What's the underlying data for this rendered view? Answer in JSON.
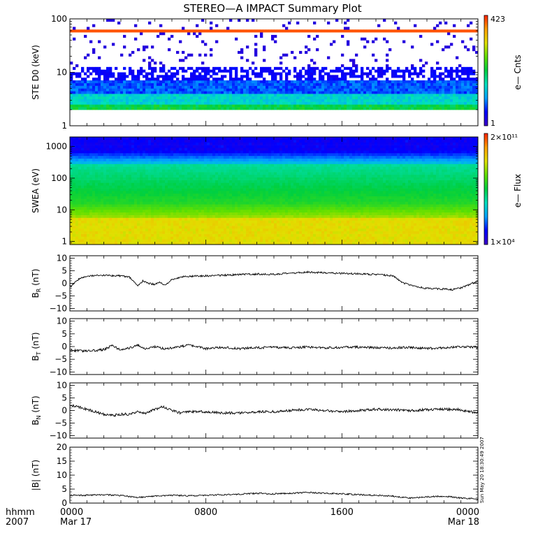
{
  "title": "STEREO—A IMPACT Summary Plot",
  "time_axis": {
    "row1_label": "hhmm",
    "row2_label": "2007",
    "ticks": [
      {
        "hours": 0,
        "time": "0000",
        "date": "Mar 17"
      },
      {
        "hours": 8,
        "time": "0800",
        "date": ""
      },
      {
        "hours": 16,
        "time": "1600",
        "date": ""
      },
      {
        "hours": 24,
        "time": "0000",
        "date": "Mar 18"
      }
    ]
  },
  "timestamp": "Sun May 20 18:30:49 2007",
  "colors": {
    "spectrogram_scale": [
      "#3b00c8",
      "#0000ff",
      "#00a0ff",
      "#00e0c0",
      "#00d040",
      "#60e000",
      "#e0e000",
      "#ffa000",
      "#ff2000"
    ],
    "line": "#000000",
    "axis": "#000000"
  },
  "chart_data": [
    {
      "type": "heatmap",
      "panel": "ste",
      "ylabel": "STE D0 (keV)",
      "yscale": "log",
      "ylim": [
        1,
        100
      ],
      "yticks": [
        {
          "v": 1,
          "t": "1"
        },
        {
          "v": 10,
          "t": "10"
        },
        {
          "v": 100,
          "t": "100"
        }
      ],
      "xlim": [
        0,
        24
      ],
      "colorbar": {
        "label": "e— Cnts",
        "max_label": "423",
        "min_label": "1",
        "range": [
          1,
          423
        ]
      }
    },
    {
      "type": "heatmap",
      "panel": "swea",
      "ylabel": "SWEA (eV)",
      "yscale": "log",
      "ylim": [
        0.8,
        2000
      ],
      "yticks": [
        {
          "v": 1,
          "t": "1"
        },
        {
          "v": 10,
          "t": "10"
        },
        {
          "v": 100,
          "t": "100"
        },
        {
          "v": 1000,
          "t": "1000"
        }
      ],
      "xlim": [
        0,
        24
      ],
      "colorbar": {
        "label": "e— Flux",
        "max_label": "2×10¹¹",
        "min_label": "1×10⁴",
        "range": [
          10000,
          200000000000
        ]
      }
    },
    {
      "type": "line",
      "panel": "br",
      "ylabel_main": "B",
      "ylabel_sub": "R",
      "ylabel_tail": " (nT)",
      "ylim": [
        -11,
        11
      ],
      "yticks": [
        {
          "v": 10,
          "t": "10"
        },
        {
          "v": 5,
          "t": "5"
        },
        {
          "v": 0,
          "t": "0"
        },
        {
          "v": -5,
          "t": "−5"
        },
        {
          "v": -10,
          "t": "−10"
        }
      ],
      "x": [
        0,
        0.3,
        0.6,
        1.0,
        2.0,
        3.0,
        3.5,
        3.8,
        4.0,
        4.3,
        4.6,
        5.0,
        5.3,
        5.6,
        6.0,
        6.5,
        7.0,
        8.0,
        9.0,
        10.0,
        11.0,
        12.0,
        13.0,
        14.0,
        15.0,
        16.0,
        17.0,
        18.0,
        19.0,
        19.5,
        20.0,
        20.5,
        21.0,
        22.0,
        22.5,
        23.0,
        23.5,
        24.0
      ],
      "y": [
        -1.5,
        0.5,
        2.0,
        2.8,
        3.2,
        3.0,
        2.5,
        0.5,
        -1.0,
        1.0,
        0.0,
        -0.5,
        0.5,
        -1.0,
        1.5,
        2.5,
        2.8,
        3.0,
        3.2,
        3.5,
        3.7,
        3.6,
        4.0,
        4.5,
        4.2,
        4.0,
        3.8,
        3.5,
        3.0,
        0.5,
        -0.8,
        -1.5,
        -2.0,
        -2.3,
        -2.5,
        -1.8,
        -0.5,
        1.0
      ],
      "noise": 0.35
    },
    {
      "type": "line",
      "panel": "bt",
      "ylabel_main": "B",
      "ylabel_sub": "T",
      "ylabel_tail": " (nT)",
      "ylim": [
        -11,
        11
      ],
      "yticks": [
        {
          "v": 10,
          "t": "10"
        },
        {
          "v": 5,
          "t": "5"
        },
        {
          "v": 0,
          "t": "0"
        },
        {
          "v": -5,
          "t": "−5"
        },
        {
          "v": -10,
          "t": "−10"
        }
      ],
      "x": [
        0,
        1,
        2,
        2.5,
        3,
        3.5,
        4,
        4.5,
        5,
        5.5,
        6,
        7,
        8,
        9,
        10,
        11,
        12,
        13,
        14,
        15,
        16,
        17,
        18,
        19,
        20,
        21,
        22,
        23,
        24
      ],
      "y": [
        -1.5,
        -1.8,
        -1.2,
        0.5,
        -1.5,
        -0.5,
        0.5,
        -1.0,
        0.0,
        -0.8,
        -0.5,
        0.5,
        -0.8,
        -0.3,
        -0.8,
        -0.5,
        -0.3,
        -0.5,
        -0.2,
        -0.5,
        -0.3,
        -0.2,
        -0.5,
        -0.5,
        -0.3,
        -0.8,
        -0.5,
        0.0,
        -0.3
      ],
      "noise": 0.45
    },
    {
      "type": "line",
      "panel": "bn",
      "ylabel_main": "B",
      "ylabel_sub": "N",
      "ylabel_tail": " (nT)",
      "ylim": [
        -11,
        11
      ],
      "yticks": [
        {
          "v": 10,
          "t": "10"
        },
        {
          "v": 5,
          "t": "5"
        },
        {
          "v": 0,
          "t": "0"
        },
        {
          "v": -5,
          "t": "−5"
        },
        {
          "v": -10,
          "t": "−10"
        }
      ],
      "x": [
        0,
        0.5,
        1,
        1.5,
        2,
        2.5,
        3,
        3.5,
        4,
        4.5,
        5,
        5.5,
        6,
        6.5,
        7,
        8,
        9,
        10,
        11,
        12,
        13,
        14,
        15,
        16,
        17,
        18,
        19,
        20,
        21,
        22,
        23,
        23.5,
        24
      ],
      "y": [
        2.0,
        1.5,
        0.5,
        -0.5,
        -1.5,
        -2.0,
        -1.5,
        -1.5,
        -0.5,
        -1.0,
        0.5,
        1.5,
        0.0,
        -1.0,
        -0.5,
        -0.5,
        -1.0,
        -1.0,
        -0.5,
        -0.5,
        0.0,
        0.5,
        0.0,
        -0.5,
        0.0,
        0.5,
        0.3,
        0.0,
        0.3,
        0.5,
        0.3,
        -0.5,
        -0.8
      ],
      "noise": 0.5
    },
    {
      "type": "line",
      "panel": "bmag",
      "ylabel_main": "|B| (nT)",
      "ylabel_sub": "",
      "ylabel_tail": "",
      "ylim": [
        0,
        20
      ],
      "yticks": [
        {
          "v": 20,
          "t": "20"
        },
        {
          "v": 15,
          "t": "15"
        },
        {
          "v": 10,
          "t": "10"
        },
        {
          "v": 5,
          "t": "5"
        },
        {
          "v": 0,
          "t": "0"
        }
      ],
      "x": [
        0,
        1,
        2,
        3,
        4,
        5,
        6,
        7,
        8,
        9,
        10,
        11,
        12,
        13,
        14,
        15,
        16,
        17,
        18,
        19,
        20,
        21,
        22,
        23,
        24
      ],
      "y": [
        2.8,
        2.8,
        3.0,
        2.7,
        2.0,
        2.5,
        2.8,
        2.6,
        2.8,
        3.0,
        3.2,
        3.5,
        3.3,
        3.5,
        3.8,
        3.5,
        3.3,
        3.0,
        2.8,
        2.5,
        1.8,
        2.2,
        2.5,
        1.8,
        1.5
      ],
      "noise": 0.25
    }
  ]
}
